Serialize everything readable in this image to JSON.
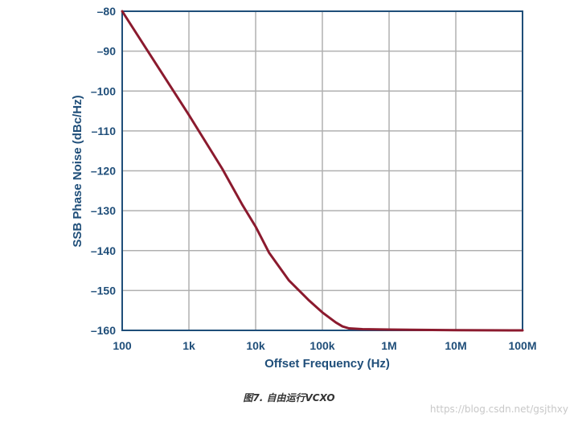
{
  "chart_data": {
    "type": "line",
    "xlabel": "Offset Frequency (Hz)",
    "ylabel": "SSB Phase Noise (dBc/Hz)",
    "x_scale": "log",
    "xlim": [
      100,
      100000000
    ],
    "ylim": [
      -160,
      -80
    ],
    "x_ticks": [
      {
        "value": 100,
        "label": "100"
      },
      {
        "value": 1000,
        "label": "1k"
      },
      {
        "value": 10000,
        "label": "10k"
      },
      {
        "value": 100000,
        "label": "100k"
      },
      {
        "value": 1000000,
        "label": "1M"
      },
      {
        "value": 10000000,
        "label": "10M"
      },
      {
        "value": 100000000,
        "label": "100M"
      }
    ],
    "y_ticks": [
      {
        "value": -80,
        "label": "–80"
      },
      {
        "value": -90,
        "label": "–90"
      },
      {
        "value": -100,
        "label": "–100"
      },
      {
        "value": -110,
        "label": "–110"
      },
      {
        "value": -120,
        "label": "–120"
      },
      {
        "value": -130,
        "label": "–130"
      },
      {
        "value": -140,
        "label": "–140"
      },
      {
        "value": -150,
        "label": "–150"
      },
      {
        "value": -160,
        "label": "–160"
      }
    ],
    "grid": true,
    "series": [
      {
        "color": "#8b1a2e",
        "points": [
          {
            "x": 100,
            "y": -80
          },
          {
            "x": 316,
            "y": -93
          },
          {
            "x": 1000,
            "y": -106
          },
          {
            "x": 3162,
            "y": -119.5
          },
          {
            "x": 6310,
            "y": -128.5
          },
          {
            "x": 10000,
            "y": -134
          },
          {
            "x": 15850,
            "y": -140.5
          },
          {
            "x": 31620,
            "y": -147.5
          },
          {
            "x": 63100,
            "y": -152.5
          },
          {
            "x": 100000,
            "y": -155.5
          },
          {
            "x": 158500,
            "y": -158
          },
          {
            "x": 200000,
            "y": -159
          },
          {
            "x": 251200,
            "y": -159.5
          },
          {
            "x": 398100,
            "y": -159.7
          },
          {
            "x": 1000000,
            "y": -159.8
          },
          {
            "x": 10000000,
            "y": -159.95
          },
          {
            "x": 100000000,
            "y": -160
          }
        ]
      }
    ]
  },
  "caption": "图7. 自由运行VCXO",
  "watermark": "https://blog.csdn.net/gsjthxy"
}
